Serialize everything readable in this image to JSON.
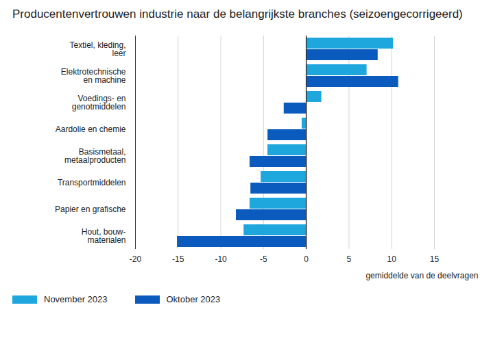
{
  "chart_data": {
    "type": "bar",
    "orientation": "horizontal",
    "title": "Producentenvertrouwen industrie naar de belangrijkste branches (seizoengecorrigeerd)",
    "xlabel": "gemiddelde van de deelvragen",
    "categories": [
      "Textiel, kleding, leer",
      "Elektrotechnische en machine",
      "Voedings- en genotmiddelen",
      "Aardolie en chemie",
      "Basismetaal, metaalproducten",
      "Transportmiddelen",
      "Papier en grafische",
      "Hout, bouw-materialen"
    ],
    "series": [
      {
        "name": "November 2023",
        "color": "#1ea7dc",
        "values": [
          10.2,
          7.1,
          1.8,
          -0.5,
          -4.5,
          -5.3,
          -6.6,
          -7.3
        ]
      },
      {
        "name": "Oktober 2023",
        "color": "#0b5bbf",
        "values": [
          8.4,
          10.8,
          -2.6,
          -4.5,
          -6.6,
          -6.5,
          -8.2,
          -15.1
        ]
      }
    ],
    "xlim": [
      -20,
      15
    ],
    "xticks": [
      -20,
      -15,
      -10,
      -5,
      0,
      5,
      10,
      15
    ],
    "grid": true,
    "legend": "bottom"
  }
}
